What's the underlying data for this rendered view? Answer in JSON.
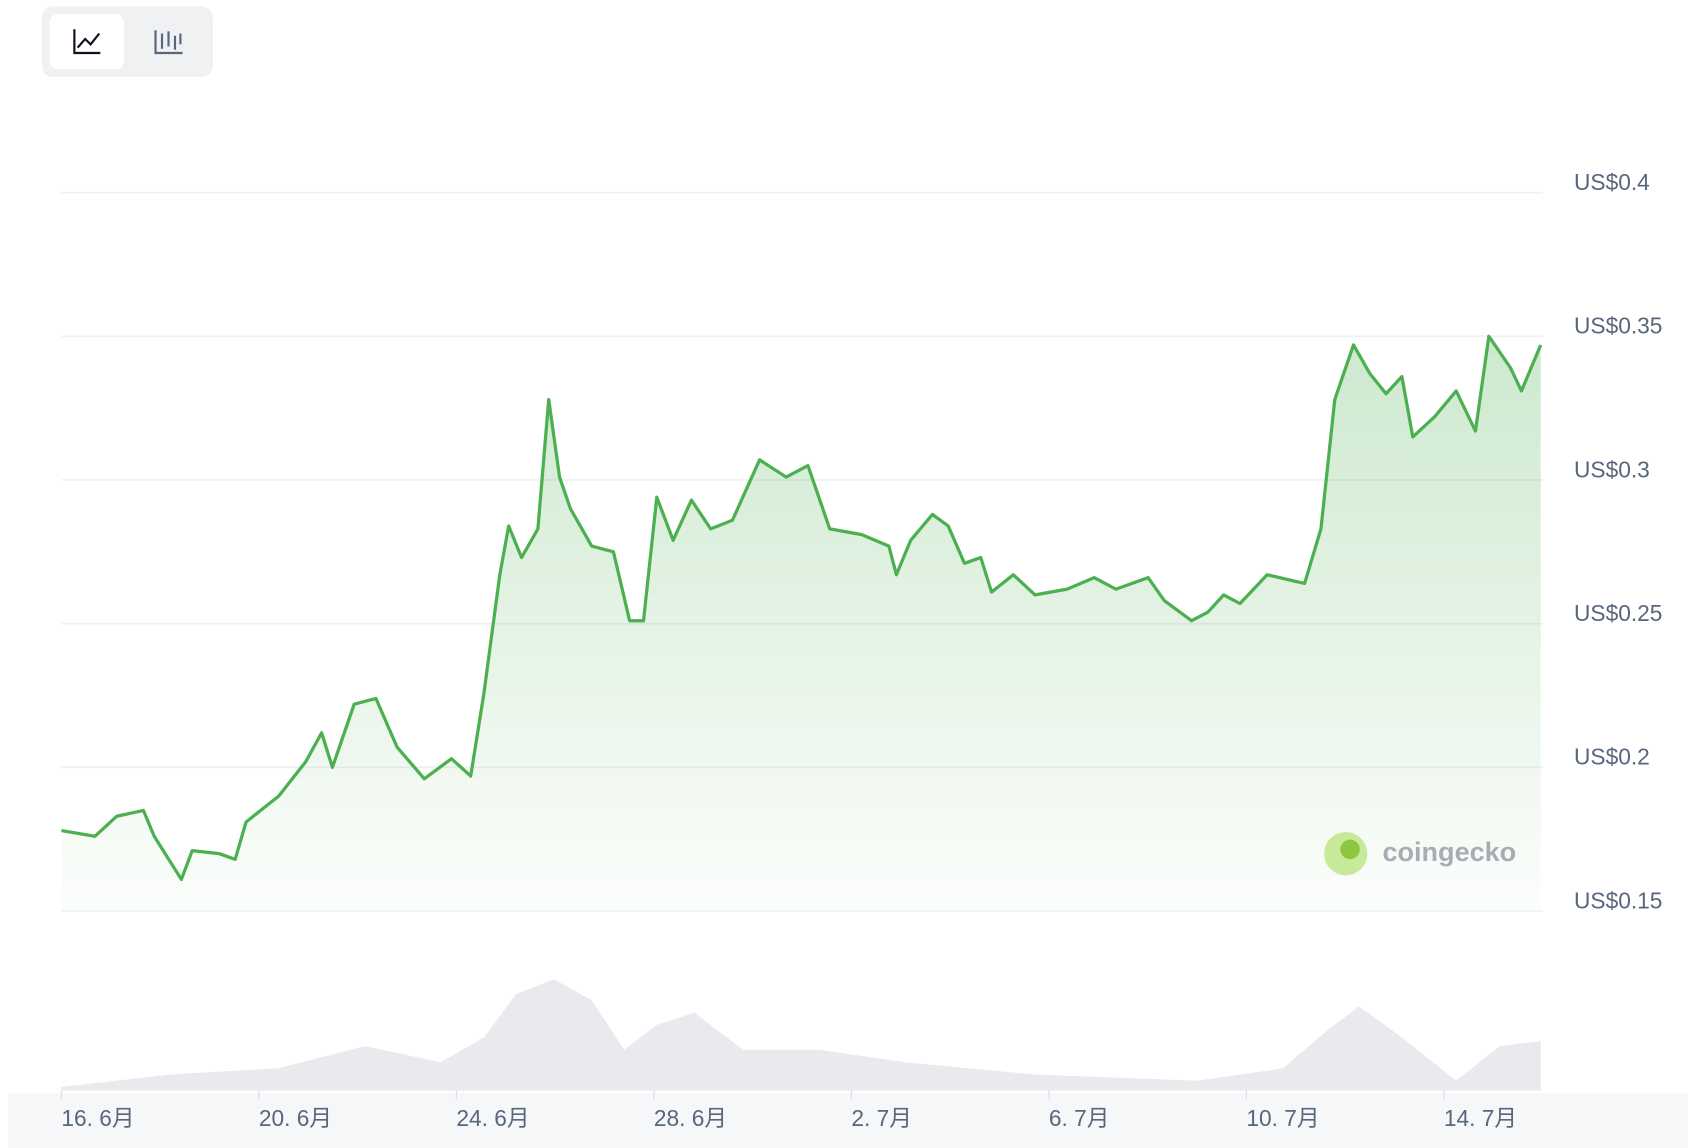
{
  "chart_data": {
    "type": "line",
    "x": [
      0,
      0.68,
      1.12,
      1.66,
      1.88,
      2.43,
      2.65,
      3.19,
      3.52,
      3.74,
      4.4,
      4.95,
      5.27,
      5.49,
      5.93,
      6.37,
      6.8,
      7.35,
      7.9,
      8.29,
      8.56,
      8.88,
      9.06,
      9.32,
      9.65,
      9.87,
      10.09,
      10.31,
      10.74,
      11.18,
      11.51,
      11.79,
      12.06,
      12.39,
      12.76,
      13.15,
      13.59,
      14.14,
      14.68,
      15.12,
      15.56,
      16.21,
      16.76,
      16.91,
      17.2,
      17.64,
      17.96,
      18.29,
      18.62,
      18.84,
      19.28,
      19.72,
      20.37,
      20.92,
      21.36,
      22.01,
      22.34,
      22.89,
      23.22,
      23.54,
      23.87,
      24.42,
      25.18,
      25.51,
      25.79,
      26.17,
      26.5,
      26.83,
      27.15,
      27.37,
      27.81,
      28.25,
      28.64,
      28.91,
      29.35,
      29.57,
      29.96
    ],
    "series": [
      {
        "color": "#4caf50",
        "values": [
          0.178,
          0.176,
          0.183,
          0.185,
          0.176,
          0.161,
          0.171,
          0.17,
          0.168,
          0.181,
          0.19,
          0.202,
          0.212,
          0.2,
          0.222,
          0.224,
          0.207,
          0.196,
          0.203,
          0.197,
          0.226,
          0.267,
          0.284,
          0.273,
          0.283,
          0.328,
          0.301,
          0.29,
          0.277,
          0.275,
          0.251,
          0.251,
          0.294,
          0.279,
          0.293,
          0.283,
          0.286,
          0.307,
          0.301,
          0.305,
          0.283,
          0.281,
          0.277,
          0.267,
          0.279,
          0.288,
          0.284,
          0.271,
          0.273,
          0.261,
          0.267,
          0.26,
          0.262,
          0.266,
          0.262,
          0.266,
          0.258,
          0.251,
          0.254,
          0.26,
          0.257,
          0.267,
          0.264,
          0.283,
          0.328,
          0.347,
          0.337,
          0.33,
          0.336,
          0.315,
          0.322,
          0.331,
          0.317,
          0.35,
          0.339,
          0.331,
          0.347
        ]
      }
    ],
    "volume": {
      "color": "#e8eaee",
      "x": [
        0,
        2.21,
        4.38,
        6.15,
        7.68,
        8.56,
        9.21,
        9.98,
        10.74,
        11.4,
        12.06,
        12.82,
        13.81,
        15.34,
        17.09,
        19.72,
        22.99,
        24.74,
        25.62,
        26.28,
        27.15,
        28.25,
        29.13,
        29.96
      ],
      "values": [
        3,
        13,
        18,
        36,
        23,
        43,
        78,
        90,
        73,
        33,
        53,
        63,
        33,
        33,
        23,
        13,
        8,
        18,
        48,
        68,
        43,
        8,
        36,
        40
      ]
    },
    "xlim": [
      0,
      30
    ],
    "xticks": [
      {
        "value": 0,
        "label": "16. 6月"
      },
      {
        "value": 4,
        "label": "20. 6月"
      },
      {
        "value": 8,
        "label": "24. 6月"
      },
      {
        "value": 12,
        "label": "28. 6月"
      },
      {
        "value": 16,
        "label": "2. 7月"
      },
      {
        "value": 20,
        "label": "6. 7月"
      },
      {
        "value": 24,
        "label": "10. 7月"
      },
      {
        "value": 28,
        "label": "14. 7月"
      }
    ],
    "ylim": [
      0.15,
      0.4
    ],
    "yticks": [
      {
        "value": 0.15,
        "label": "US$0.15"
      },
      {
        "value": 0.2,
        "label": "US$0.2"
      },
      {
        "value": 0.25,
        "label": "US$0.25"
      },
      {
        "value": 0.3,
        "label": "US$0.3"
      },
      {
        "value": 0.35,
        "label": "US$0.35"
      },
      {
        "value": 0.4,
        "label": "US$0.4"
      }
    ],
    "grid": true,
    "watermark": "coingecko"
  }
}
